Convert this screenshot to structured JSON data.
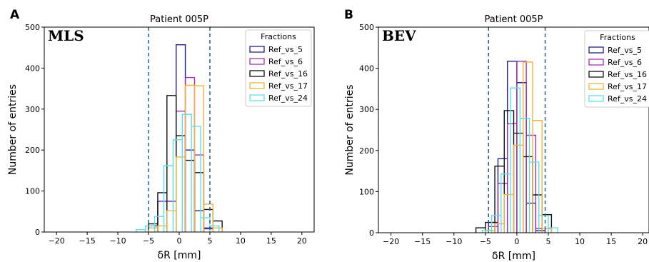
{
  "chart_data": [
    {
      "type": "histogram",
      "panel_label": "A",
      "title": "Patient 005P",
      "method_label": "MLS",
      "xlabel": "δR [mm]",
      "ylabel": "Number of entries",
      "xlim": [
        -22,
        22
      ],
      "ylim": [
        0,
        500
      ],
      "xticks": [
        -20,
        -15,
        -10,
        -5,
        0,
        5,
        10,
        15,
        20
      ],
      "xtick_labels": [
        "−20",
        "−15",
        "−10",
        "−5",
        "0",
        "5",
        "10",
        "15",
        "20"
      ],
      "yticks": [
        0,
        100,
        200,
        300,
        400,
        500
      ],
      "ytick_labels": [
        "0",
        "100",
        "200",
        "300",
        "400",
        "500"
      ],
      "vlines": [
        -5,
        5
      ],
      "legend": {
        "title": "Fractions",
        "position": "top-right"
      },
      "series": [
        {
          "name": "Ref_vs_5",
          "color": "#1f1f8c",
          "edges": [
            -5,
            -3.5,
            -2,
            -0.5,
            1,
            2.5,
            4,
            5.5
          ],
          "values": [
            15,
            75,
            75,
            457,
            200,
            52,
            8
          ]
        },
        {
          "name": "Ref_vs_6",
          "color": "#a030b0",
          "edges": [
            -5,
            -3.5,
            -2,
            -0.5,
            1,
            2.5,
            4,
            5.5
          ],
          "values": [
            10,
            75,
            75,
            295,
            377,
            188,
            10
          ]
        },
        {
          "name": "Ref_vs_16",
          "color": "#111111",
          "edges": [
            -5,
            -3.5,
            -2,
            -0.5,
            1,
            2.5,
            4,
            5.5,
            7
          ],
          "values": [
            20,
            96,
            333,
            235,
            175,
            145,
            55,
            27
          ]
        },
        {
          "name": "Ref_vs_17",
          "color": "#f0b43c",
          "edges": [
            -5,
            -3.5,
            -2,
            -0.5,
            1,
            2.5,
            4,
            5.5,
            7
          ],
          "values": [
            10,
            15,
            52,
            183,
            358,
            357,
            68,
            10
          ]
        },
        {
          "name": "Ref_vs_24",
          "color": "#5ae1ec",
          "edges": [
            -7,
            -5.5,
            -4,
            -2.5,
            -1,
            0.5,
            2,
            3.5,
            5,
            6.5
          ],
          "values": [
            6,
            15,
            38,
            162,
            225,
            287,
            258,
            35,
            15
          ]
        }
      ]
    },
    {
      "type": "histogram",
      "panel_label": "B",
      "title": "Patient 005P",
      "method_label": "BEV",
      "xlabel": "δR [mm]",
      "ylabel": "Number of entries",
      "xlim": [
        -22,
        21
      ],
      "ylim": [
        0,
        500
      ],
      "xticks": [
        -20,
        -15,
        -10,
        -5,
        0,
        5,
        10,
        15,
        20
      ],
      "xtick_labels": [
        "−20",
        "−15",
        "−10",
        "−5",
        "0",
        "5",
        "10",
        "15",
        "20"
      ],
      "yticks": [
        0,
        100,
        200,
        300,
        400,
        500
      ],
      "ytick_labels": [
        "0",
        "100",
        "200",
        "300",
        "400",
        "500"
      ],
      "vlines": [
        -4.5,
        4.5
      ],
      "legend": {
        "title": "Fractions",
        "position": "top-right"
      },
      "series": [
        {
          "name": "Ref_vs_5",
          "color": "#1f1f8c",
          "edges": [
            -4.5,
            -3,
            -1.5,
            0,
            1.5,
            3,
            4.5
          ],
          "values": [
            25,
            180,
            417,
            365,
            72,
            5
          ]
        },
        {
          "name": "Ref_vs_6",
          "color": "#a030b0",
          "edges": [
            -4.5,
            -3,
            -1.5,
            0,
            1.5,
            3,
            4.5
          ],
          "values": [
            15,
            120,
            265,
            417,
            237,
            10
          ]
        },
        {
          "name": "Ref_vs_16",
          "color": "#111111",
          "edges": [
            -6.5,
            -5,
            -3.5,
            -2,
            -0.5,
            1,
            2.5,
            4,
            5.5
          ],
          "values": [
            12,
            25,
            162,
            297,
            242,
            185,
            92,
            44
          ]
        },
        {
          "name": "Ref_vs_17",
          "color": "#f0b43c",
          "edges": [
            -5,
            -3.5,
            -2,
            -0.5,
            1,
            2.5,
            4,
            5.5
          ],
          "values": [
            5,
            22,
            93,
            213,
            415,
            273,
            10
          ]
        },
        {
          "name": "Ref_vs_24",
          "color": "#5ae1ec",
          "edges": [
            -5.5,
            -4,
            -2.5,
            -1,
            0.5,
            2,
            3.5,
            5,
            6.5
          ],
          "values": [
            6,
            42,
            143,
            352,
            278,
            172,
            42,
            12
          ]
        }
      ]
    }
  ]
}
